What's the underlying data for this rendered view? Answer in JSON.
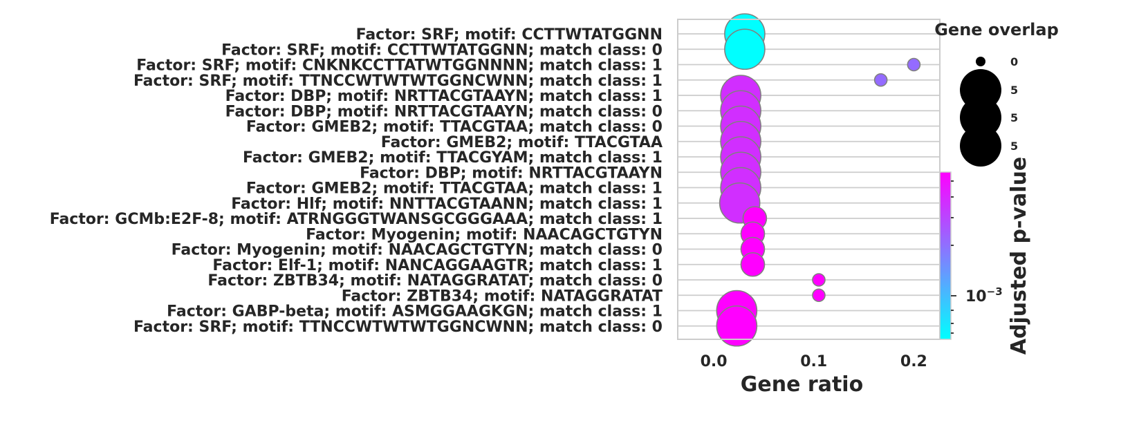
{
  "chart_data": {
    "type": "scatter",
    "title": "",
    "xlabel": "Gene ratio",
    "xticks": [
      "0.0",
      "0.1",
      "0.2"
    ],
    "xlim": [
      -0.036,
      0.226
    ],
    "grid": true,
    "categories": [
      "Factor: SRF; motif: CCTTWTATGGNN",
      "Factor: SRF; motif: CCTTWTATGGNN; match class: 0",
      "Factor: SRF; motif: CNKNKCCTTATWTGGNNNN; match class: 1",
      "Factor: SRF; motif: TTNCCWTWTWTGGNCWNN; match class: 1",
      "Factor: DBP; motif: NRTTACGTAAYN; match class: 1",
      "Factor: DBP; motif: NRTTACGTAAYN; match class: 0",
      "Factor: GMEB2; motif: TTACGTAA; match class: 0",
      "Factor: GMEB2; motif: TTACGTAA",
      "Factor: GMEB2; motif: TTACGYAM; match class: 1",
      "Factor: DBP; motif: NRTTACGTAAYN",
      "Factor: GMEB2; motif: TTACGTAA; match class: 1",
      "Factor: Hlf; motif: NNTTACGTAANN; match class: 1",
      "Factor: GCMb:E2F-8; motif: ATRNGGGTWANSGCGGGAAA; match class: 1",
      "Factor: Myogenin; motif: NAACAGCTGTYN",
      "Factor: Myogenin; motif: NAACAGCTGTYN; match class: 0",
      "Factor: Elf-1; motif: NANCAGGAAGTR; match class: 1",
      "Factor: ZBTB34; motif: NATAGGRATAT; match class: 0",
      "Factor: ZBTB34; motif: NATAGGRATAT",
      "Factor: GABP-beta; motif: ASMGGAAGKGN; match class: 1",
      "Factor: SRF; motif: TTNCCWTWTWTGGNCWNN; match class: 0"
    ],
    "gene_ratio": [
      0.031,
      0.031,
      0.2,
      0.167,
      0.027,
      0.027,
      0.027,
      0.027,
      0.027,
      0.027,
      0.027,
      0.026,
      0.041,
      0.039,
      0.039,
      0.039,
      0.105,
      0.105,
      0.023,
      0.023
    ],
    "gene_overlap": [
      5,
      5,
      1,
      1,
      5,
      5,
      5,
      5,
      5,
      5,
      5,
      5,
      3,
      3,
      3,
      3,
      1,
      1,
      5,
      5
    ],
    "color_level": [
      0.0,
      0.0,
      0.58,
      0.58,
      0.82,
      0.82,
      0.82,
      0.82,
      0.82,
      0.82,
      0.82,
      0.82,
      1.0,
      1.0,
      1.0,
      1.0,
      1.0,
      1.0,
      1.0,
      1.0
    ],
    "size_legend": {
      "title": "Gene overlap",
      "labels": [
        "0",
        "5",
        "5",
        "5"
      ]
    },
    "colorbar": {
      "label": "Adjusted p-value",
      "scale": "log",
      "tick_label": "10",
      "tick_exp": "−3",
      "cmap": [
        "#00ffff",
        "#ff00ff"
      ]
    }
  }
}
